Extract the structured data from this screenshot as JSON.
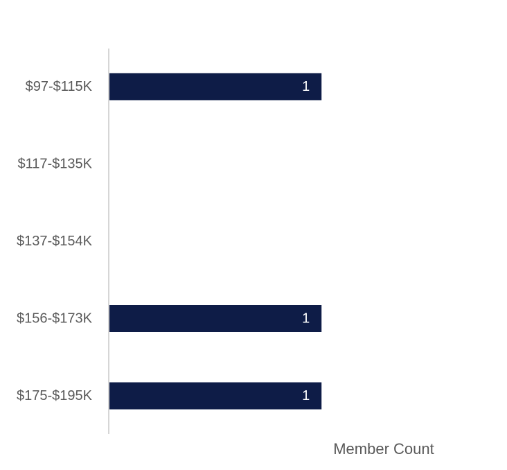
{
  "chart_data": {
    "type": "bar",
    "orientation": "horizontal",
    "categories": [
      "$97-$115K",
      "$117-$135K",
      "$137-$154K",
      "$156-$173K",
      "$175-$195K"
    ],
    "series": [
      {
        "values": [
          1,
          0,
          0,
          1,
          1
        ]
      }
    ],
    "data_labels": [
      "1",
      "",
      "",
      "1",
      "1"
    ],
    "xlabel": "Member Count",
    "ylabel": "",
    "xlim": [
      0,
      1.8
    ],
    "grid": false,
    "legend": "none",
    "bar_color": "#0e1c47",
    "axis_color": "#c8c8c8",
    "label_color": "#595959"
  }
}
